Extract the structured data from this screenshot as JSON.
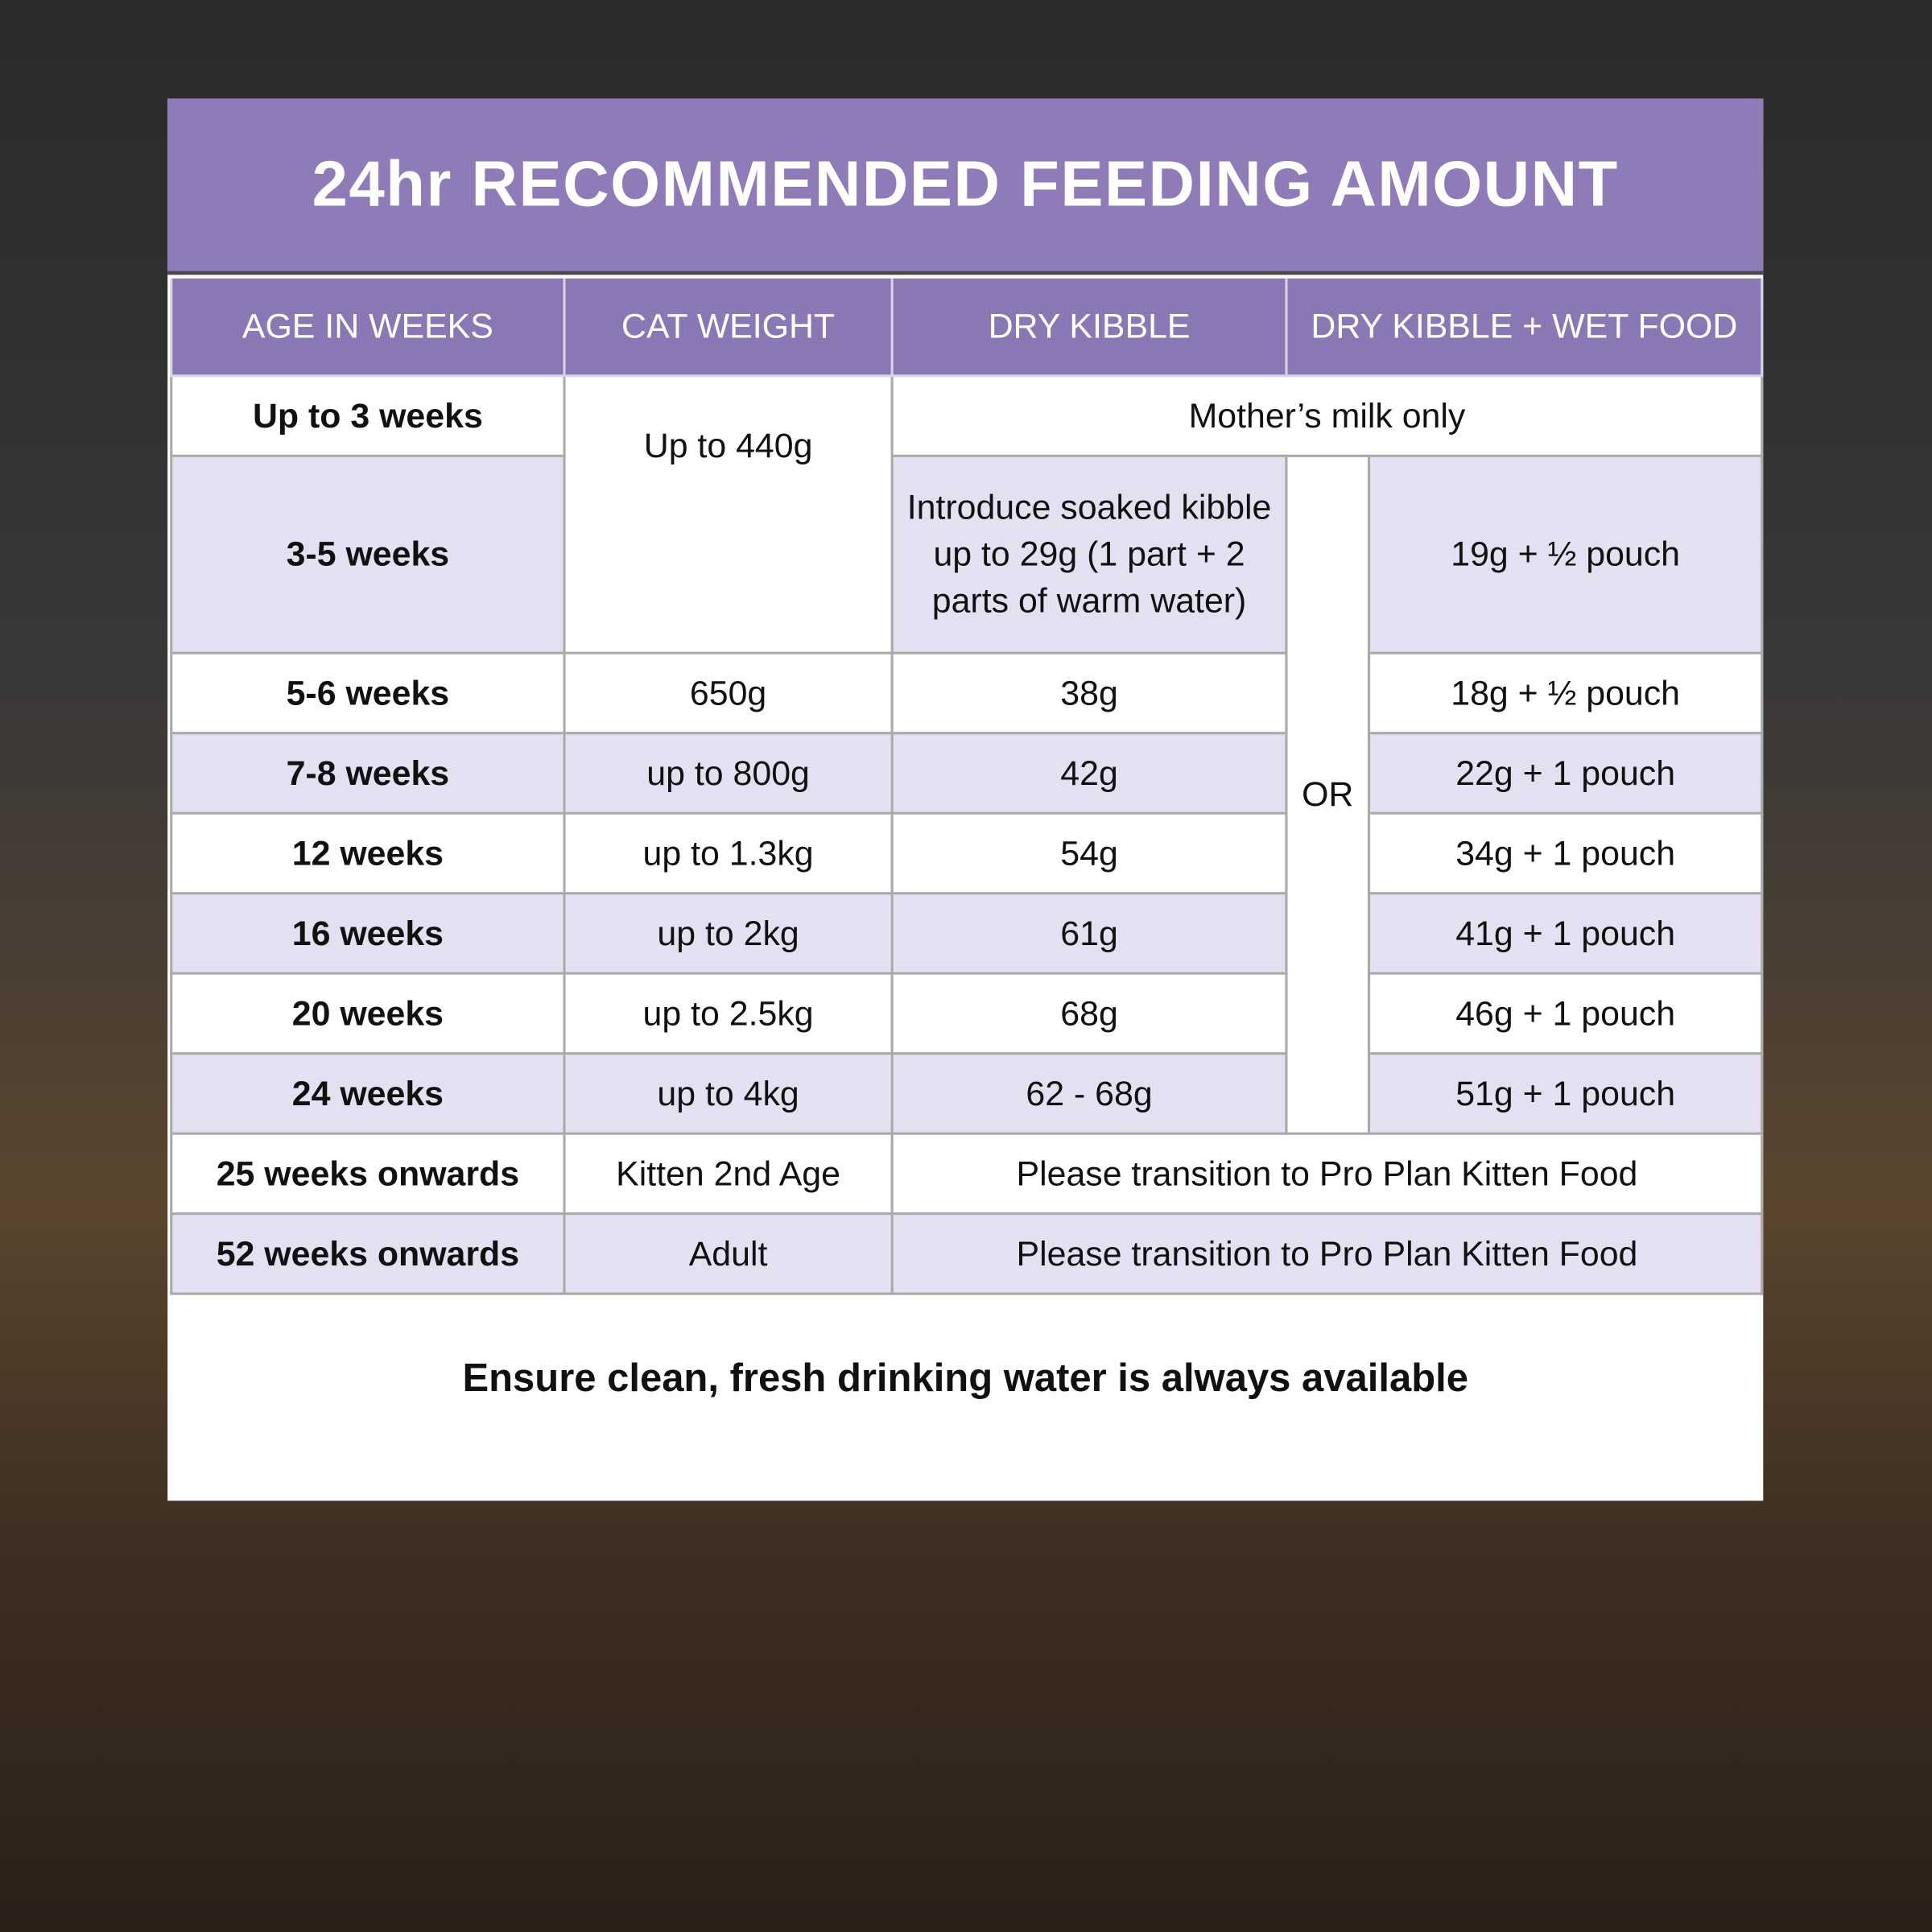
{
  "header": {
    "title": "24hr RECOMMENDED FEEDING AMOUNT"
  },
  "table": {
    "columns": [
      "AGE IN WEEKS",
      "CAT WEIGHT",
      "DRY KIBBLE",
      "DRY KIBBLE + WET FOOD"
    ],
    "rows": [
      [
        "Up to 3 weeks",
        "Up to 440g",
        "Mother’s milk only"
      ],
      [
        "3-5 weeks",
        "Introduce soaked kibble up to 29g (1 part + 2 parts of warm water)",
        "OR",
        "19g + ½ pouch"
      ],
      [
        "5-6 weeks",
        "650g",
        "38g",
        "18g + ½ pouch"
      ],
      [
        "7-8 weeks",
        "up to 800g",
        "42g",
        "22g + 1 pouch"
      ],
      [
        "12 weeks",
        "up to 1.3kg",
        "54g",
        "34g + 1 pouch"
      ],
      [
        "16 weeks",
        "up to 2kg",
        "61g",
        "41g + 1 pouch"
      ],
      [
        "20 weeks",
        "up to 2.5kg",
        "68g",
        "46g + 1 pouch"
      ],
      [
        "24 weeks",
        "up to 4kg",
        "62 - 68g",
        "51g + 1 pouch"
      ],
      [
        "25 weeks onwards",
        "Kitten 2nd Age",
        "Please transition to Pro Plan Kitten Food"
      ],
      [
        "52 weeks onwards",
        "Adult",
        "Please transition to Pro Plan Kitten Food"
      ]
    ]
  },
  "footer": {
    "note": "Ensure clean, fresh drinking water is always available"
  }
}
